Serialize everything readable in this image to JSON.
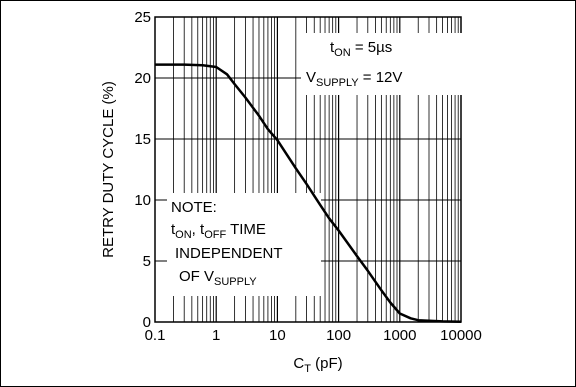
{
  "chart_data": {
    "type": "line",
    "x_scale": "log",
    "xlim": [
      0.1,
      10000
    ],
    "ylim": [
      0,
      25
    ],
    "grid": true,
    "x_ticks": [
      "0.1",
      "1",
      "10",
      "100",
      "1000",
      "10000"
    ],
    "y_ticks": [
      "0",
      "5",
      "10",
      "15",
      "20",
      "25"
    ],
    "xlabel": {
      "main": "C",
      "sub": "T",
      "unit": " (pF)"
    },
    "ylabel": "RETRY DUTY CYCLE (%)",
    "series": [
      {
        "x": [
          0.1,
          0.3,
          0.6,
          1,
          1.5,
          2,
          3,
          5,
          7,
          10,
          20,
          30,
          50,
          70,
          100,
          200,
          300,
          500,
          700,
          1000,
          1500,
          2000,
          5000,
          10000
        ],
        "y": [
          21.1,
          21.1,
          21.05,
          20.9,
          20.3,
          19.5,
          18.4,
          16.9,
          15.8,
          14.9,
          12.6,
          11.3,
          9.6,
          8.5,
          7.5,
          5.4,
          4.2,
          2.6,
          1.6,
          0.7,
          0.3,
          0.15,
          0.05,
          0.02
        ]
      }
    ],
    "annotations": {
      "top_right": {
        "line1": {
          "main": "t",
          "sub": "ON",
          "rest": " = 5µs"
        },
        "line2": {
          "main": "V",
          "sub": "SUPPLY",
          "rest": " = 12V"
        }
      },
      "note": {
        "title": "NOTE:",
        "line1": {
          "a": "t",
          "a_sub": "ON",
          "sep": ", t",
          "b_sub": "OFF",
          "rest": " TIME"
        },
        "line2": "INDEPENDENT",
        "line3": {
          "main": "OF V",
          "sub": "SUPPLY"
        }
      }
    }
  }
}
